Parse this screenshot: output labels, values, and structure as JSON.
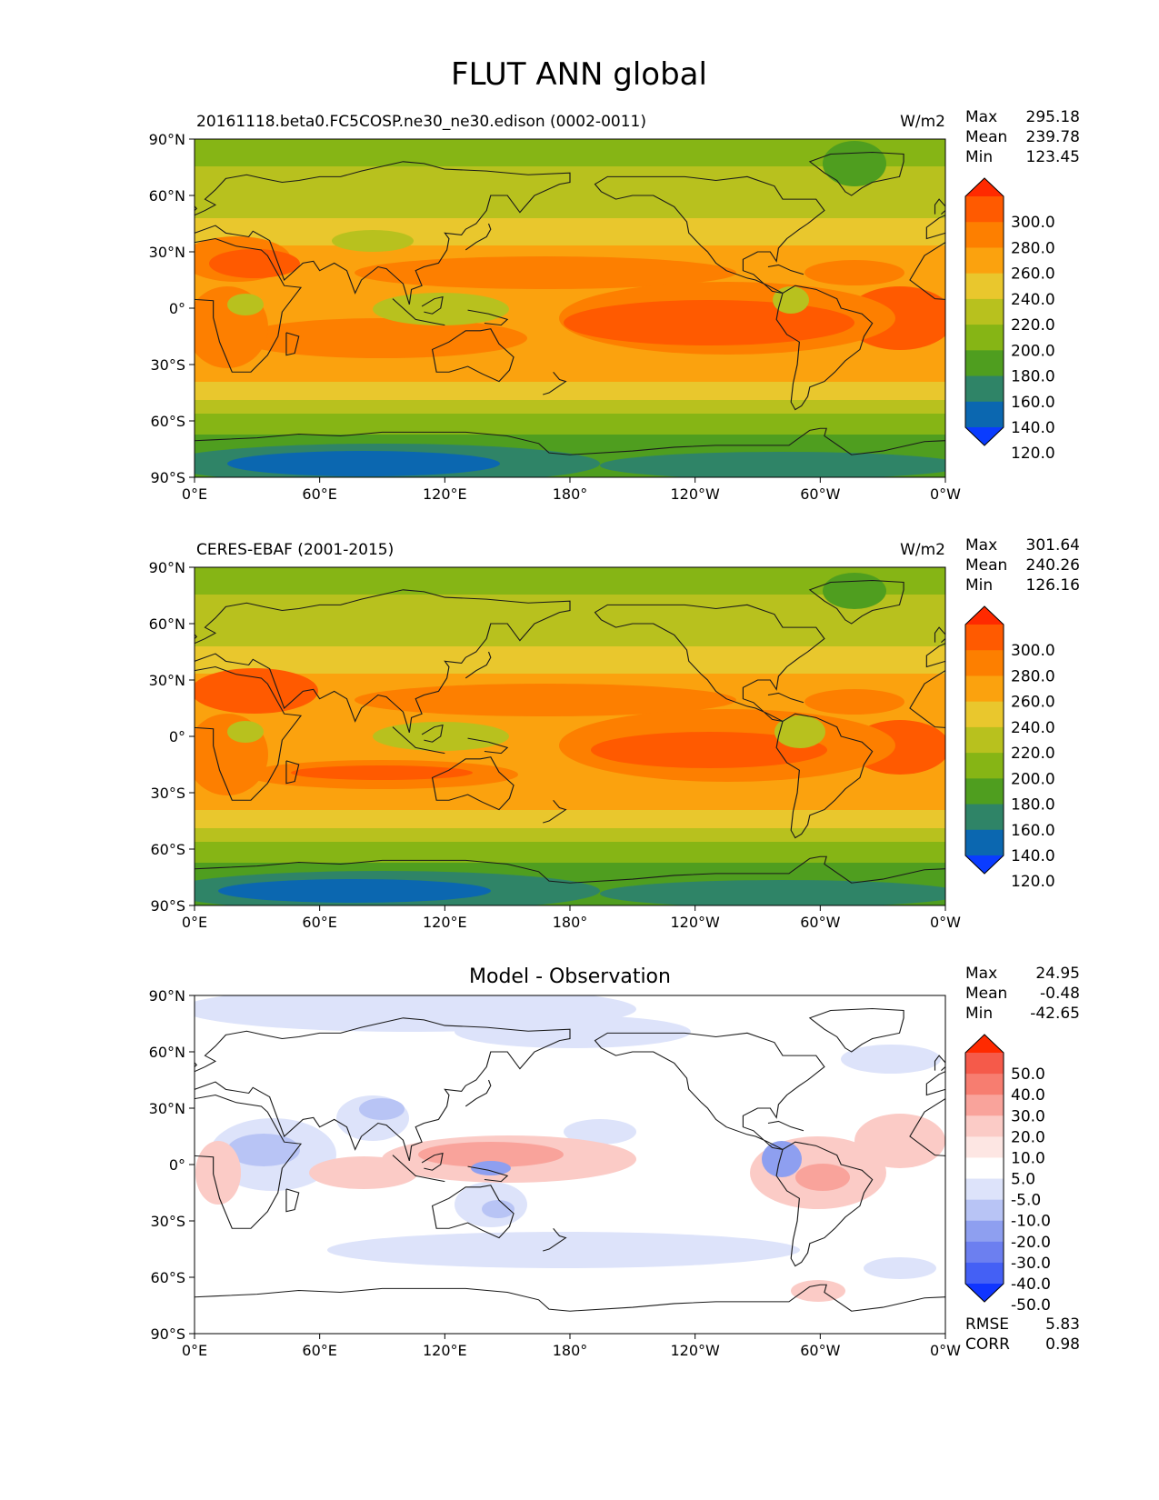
{
  "title": "FLUT ANN global",
  "x_ticks": [
    "0°E",
    "60°E",
    "120°E",
    "180°",
    "120°W",
    "60°W",
    "0°W"
  ],
  "y_ticks": [
    "90°N",
    "60°N",
    "30°N",
    "0°",
    "30°S",
    "60°S",
    "90°S"
  ],
  "panels": [
    {
      "id": "model",
      "left_title": "20161118.beta0.FC5COSP.ne30_ne30.edison (0002-0011)",
      "center_title": "",
      "units": "W/m2",
      "stats": [
        {
          "label": "Max",
          "value": "295.18"
        },
        {
          "label": "Mean",
          "value": "239.78"
        },
        {
          "label": "Min",
          "value": "123.45"
        }
      ],
      "colorbar": {
        "labels": [
          "300.0",
          "280.0",
          "260.0",
          "240.0",
          "220.0",
          "200.0",
          "180.0",
          "160.0",
          "140.0",
          "120.0"
        ],
        "colors": [
          "#ff2a00",
          "#ff5a00",
          "#fd7f00",
          "#fba20e",
          "#e9c72d",
          "#b8c11e",
          "#86b515",
          "#4f9e1f",
          "#2f8467",
          "#0b67b0",
          "#0a3cff"
        ]
      }
    },
    {
      "id": "obs",
      "left_title": "CERES-EBAF (2001-2015)",
      "center_title": "",
      "units": "W/m2",
      "stats": [
        {
          "label": "Max",
          "value": "301.64"
        },
        {
          "label": "Mean",
          "value": "240.26"
        },
        {
          "label": "Min",
          "value": "126.16"
        }
      ],
      "colorbar": {
        "labels": [
          "300.0",
          "280.0",
          "260.0",
          "240.0",
          "220.0",
          "200.0",
          "180.0",
          "160.0",
          "140.0",
          "120.0"
        ],
        "colors": [
          "#ff2a00",
          "#ff5a00",
          "#fd7f00",
          "#fba20e",
          "#e9c72d",
          "#b8c11e",
          "#86b515",
          "#4f9e1f",
          "#2f8467",
          "#0b67b0",
          "#0a3cff"
        ]
      }
    },
    {
      "id": "diff",
      "left_title": "",
      "center_title": "Model - Observation",
      "units": "",
      "stats": [
        {
          "label": "Max",
          "value": "24.95"
        },
        {
          "label": "Mean",
          "value": "-0.48"
        },
        {
          "label": "Min",
          "value": "-42.65"
        }
      ],
      "colorbar": {
        "labels": [
          "50.0",
          "40.0",
          "30.0",
          "20.0",
          "10.0",
          "5.0",
          "-5.0",
          "-10.0",
          "-20.0",
          "-30.0",
          "-40.0",
          "-50.0"
        ],
        "colors": [
          "#ff2a00",
          "#f55a4a",
          "#f77d70",
          "#f9a39b",
          "#fbcbc6",
          "#fde6e3",
          "#ffffff",
          "#dde3fa",
          "#b8c4f5",
          "#8e9ff0",
          "#6c7ff0",
          "#4460f5",
          "#1035ff"
        ]
      },
      "metrics": [
        {
          "label": "RMSE",
          "value": "5.83"
        },
        {
          "label": "CORR",
          "value": "0.98"
        }
      ]
    }
  ]
}
